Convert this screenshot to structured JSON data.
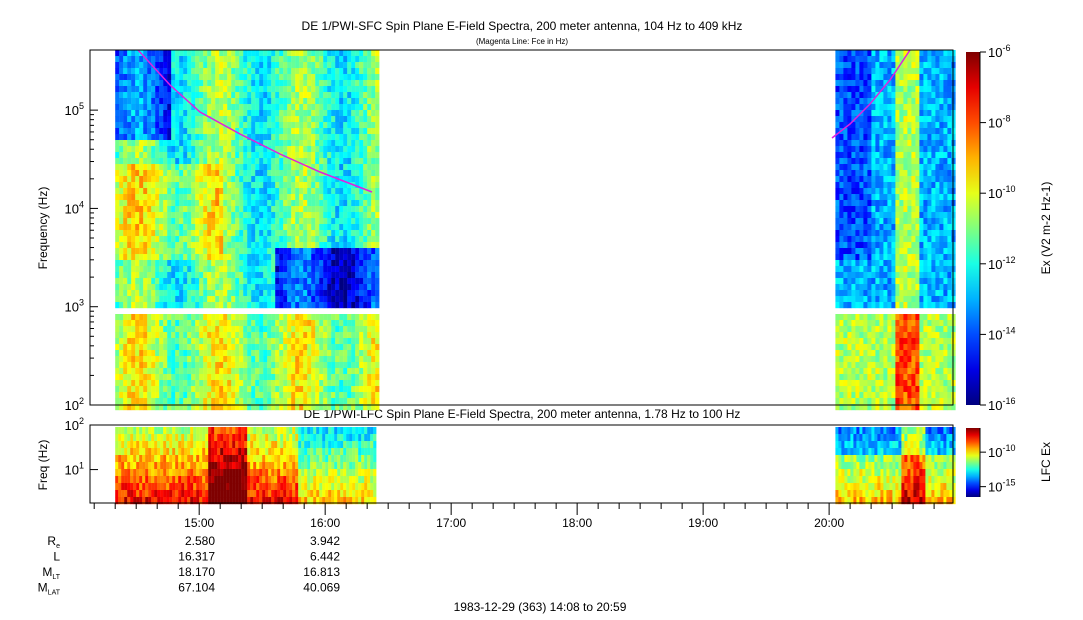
{
  "chart_data": [
    {
      "type": "heatmap",
      "title": "DE 1/PWI-SFC  Spin Plane E-Field Spectra, 200 meter antenna, 104 Hz to 409 kHz",
      "subtitle": "(Magenta Line: Fce in Hz)",
      "ylabel": "Frequency (Hz)",
      "yscale": "log",
      "ylim": [
        100,
        409000
      ],
      "yticks": [
        "10^2",
        "10^3",
        "10^4",
        "10^5"
      ],
      "colorbar": {
        "label": "Ex (V^2 m^-2 Hz^-1)",
        "scale": "log",
        "range": [
          1e-16,
          1e-06
        ],
        "ticks": [
          "10^-6",
          "10^-8",
          "10^-10",
          "10^-12",
          "10^-14",
          "10^-16"
        ]
      },
      "data_intervals": [
        [
          "14:20",
          "16:24"
        ],
        [
          "20:03",
          "20:59"
        ]
      ],
      "overlay_line": {
        "name": "Fce",
        "color": "#e020e0"
      }
    },
    {
      "type": "heatmap",
      "title": "DE 1/PWI-LFC  Spin Plane E-Field Spectra, 200 meter antenna, 1.78 Hz to 100 Hz",
      "ylabel": "Freq (Hz)",
      "yscale": "log",
      "ylim": [
        1.78,
        100
      ],
      "yticks": [
        "10^1",
        "10^2"
      ],
      "colorbar": {
        "label": "LFC Ex",
        "scale": "log",
        "ticks": [
          "10^-10",
          "10^-15"
        ]
      },
      "data_intervals": [
        [
          "14:20",
          "16:24"
        ],
        [
          "20:03",
          "20:59"
        ]
      ]
    }
  ],
  "xaxis": {
    "range": [
      "14:08",
      "20:59"
    ],
    "ticks": [
      "15:00",
      "16:00",
      "17:00",
      "18:00",
      "19:00",
      "20:00"
    ]
  },
  "ephemeris": {
    "rows": [
      {
        "label": "R",
        "sub": "e",
        "values": [
          "2.580",
          "3.942"
        ]
      },
      {
        "label": "L",
        "sub": "",
        "values": [
          "16.317",
          "6.442"
        ]
      },
      {
        "label": "M",
        "sub": "LT",
        "values": [
          "18.170",
          "16.813"
        ]
      },
      {
        "label": "M",
        "sub": "LAT",
        "values": [
          "67.104",
          "40.069"
        ]
      }
    ]
  },
  "footer": "1983-12-29 (363) 14:08 to 20:59"
}
